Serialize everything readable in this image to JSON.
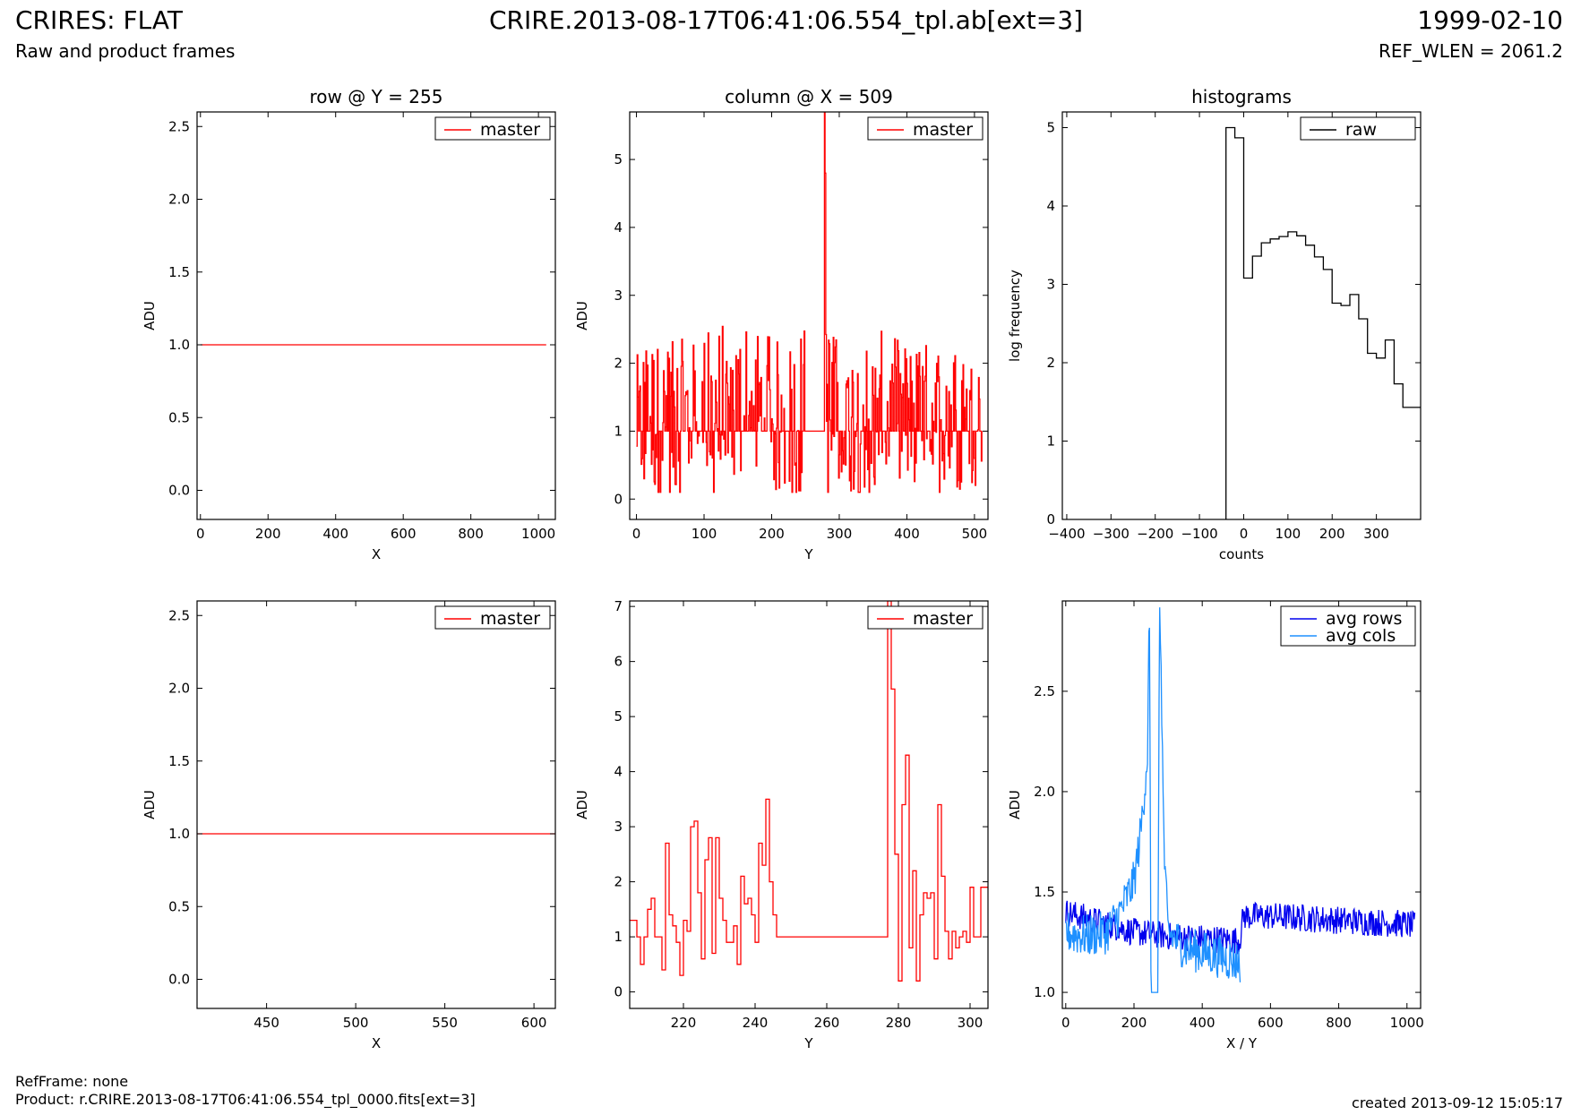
{
  "header": {
    "title": "CRIRES: FLAT",
    "subtitle": "Raw and product frames",
    "file": "CRIRE.2013-08-17T06:41:06.554_tpl.ab[ext=3]",
    "date": "1999-02-10",
    "ref_wlen": "REF_WLEN = 2061.2"
  },
  "footer": {
    "ref_frame": "RefFrame: none",
    "product": "Product: r.CRIRE.2013-08-17T06:41:06.554_tpl_0000.fits[ext=3]",
    "created": "created 2013-09-12 15:05:17"
  },
  "colors": {
    "master": "#ff0000",
    "raw": "#000000",
    "avg_rows": "#0000ee",
    "avg_cols": "#1e90ff"
  },
  "chart_data": [
    {
      "type": "line",
      "title": "row @ Y = 255",
      "xlabel": "X",
      "ylabel": "ADU",
      "xlim": [
        -10,
        1050
      ],
      "ylim": [
        -0.2,
        2.6
      ],
      "xticks": [
        0,
        200,
        400,
        600,
        800,
        1000
      ],
      "yticks": [
        0.0,
        0.5,
        1.0,
        1.5,
        2.0,
        2.5
      ],
      "ytick_labels": [
        "0.0",
        "0.5",
        "1.0",
        "1.5",
        "2.0",
        "2.5"
      ],
      "legend": "top-right",
      "series": [
        {
          "name": "master",
          "color": "#ff0000",
          "x": [
            0,
            1023
          ],
          "y": [
            1.0,
            1.0
          ]
        }
      ]
    },
    {
      "type": "line",
      "title": "column @ X = 509",
      "xlabel": "Y",
      "ylabel": "ADU",
      "xlim": [
        -10,
        520
      ],
      "ylim": [
        -0.3,
        5.7
      ],
      "xticks": [
        0,
        100,
        200,
        300,
        400,
        500
      ],
      "yticks": [
        0,
        1,
        2,
        3,
        4,
        5
      ],
      "ytick_labels": [
        "0",
        "1",
        "2",
        "3",
        "4",
        "5"
      ],
      "legend": "top-right",
      "series": [
        {
          "name": "master",
          "color": "#ff0000",
          "noisy": true,
          "x": [
            0,
            20,
            40,
            60,
            80,
            100,
            120,
            140,
            160,
            180,
            200,
            220,
            240,
            248,
            250,
            260,
            270,
            276,
            278,
            280,
            282,
            290,
            300,
            320,
            340,
            360,
            380,
            400,
            420,
            440,
            460,
            480,
            500,
            511
          ],
          "y": [
            1.2,
            1.6,
            1.3,
            1.5,
            1.4,
            1.6,
            1.7,
            1.8,
            1.9,
            1.7,
            1.5,
            1.4,
            1.6,
            1.7,
            1.0,
            1.0,
            1.0,
            1.0,
            5.7,
            3.9,
            1.9,
            1.6,
            1.5,
            1.4,
            1.5,
            1.6,
            1.5,
            1.4,
            1.4,
            1.5,
            1.4,
            1.3,
            1.2,
            1.1
          ]
        }
      ]
    },
    {
      "type": "line",
      "title": "histograms",
      "xlabel": "counts",
      "ylabel": "log frequency",
      "xlim": [
        -410,
        400
      ],
      "ylim": [
        0,
        5.2
      ],
      "xticks": [
        -400,
        -300,
        -200,
        -100,
        0,
        100,
        200,
        300
      ],
      "xtick_labels": [
        "−400",
        "−300",
        "−200",
        "−100",
        "0",
        "100",
        "200",
        "300"
      ],
      "yticks": [
        0,
        1,
        2,
        3,
        4,
        5
      ],
      "ytick_labels": [
        "0",
        "1",
        "2",
        "3",
        "4",
        "5"
      ],
      "legend": "top-right",
      "series": [
        {
          "name": "raw",
          "color": "#000000",
          "step": true,
          "x": [
            -40,
            -40,
            -20,
            0,
            20,
            40,
            60,
            80,
            100,
            120,
            140,
            160,
            180,
            200,
            220,
            240,
            260,
            280,
            300,
            320,
            340,
            360,
            380,
            400
          ],
          "y": [
            0,
            5.0,
            4.87,
            3.08,
            3.36,
            3.53,
            3.58,
            3.61,
            3.67,
            3.62,
            3.5,
            3.35,
            3.19,
            2.76,
            2.73,
            2.87,
            2.56,
            2.12,
            2.06,
            2.29,
            1.73,
            1.43,
            1.43,
            1.43
          ]
        }
      ]
    },
    {
      "type": "line",
      "title": "",
      "xlabel": "X",
      "ylabel": "ADU",
      "xlim": [
        411,
        612
      ],
      "ylim": [
        -0.2,
        2.6
      ],
      "xticks": [
        450,
        500,
        550,
        600
      ],
      "yticks": [
        0.0,
        0.5,
        1.0,
        1.5,
        2.0,
        2.5
      ],
      "ytick_labels": [
        "0.0",
        "0.5",
        "1.0",
        "1.5",
        "2.0",
        "2.5"
      ],
      "legend": "top-right",
      "series": [
        {
          "name": "master",
          "color": "#ff0000",
          "x": [
            411,
            612
          ],
          "y": [
            1.0,
            1.0
          ]
        }
      ]
    },
    {
      "type": "line",
      "title": "",
      "xlabel": "Y",
      "ylabel": "ADU",
      "xlim": [
        205,
        305
      ],
      "ylim": [
        -0.3,
        7.1
      ],
      "xticks": [
        220,
        240,
        260,
        280,
        300
      ],
      "yticks": [
        0,
        1,
        2,
        3,
        4,
        5,
        6,
        7
      ],
      "ytick_labels": [
        "0",
        "1",
        "2",
        "3",
        "4",
        "5",
        "6",
        "7"
      ],
      "legend": "top-right",
      "series": [
        {
          "name": "master",
          "color": "#ff0000",
          "step": true,
          "x": [
            205,
            206,
            207,
            208,
            209,
            210,
            211,
            212,
            213,
            214,
            215,
            216,
            217,
            218,
            219,
            220,
            221,
            222,
            223,
            224,
            225,
            226,
            227,
            228,
            229,
            230,
            231,
            232,
            233,
            234,
            235,
            236,
            237,
            238,
            239,
            240,
            241,
            242,
            243,
            244,
            245,
            246,
            247,
            248,
            277,
            278,
            279,
            280,
            281,
            282,
            283,
            284,
            285,
            286,
            287,
            288,
            289,
            290,
            291,
            292,
            293,
            294,
            295,
            296,
            297,
            298,
            299,
            300,
            301,
            302,
            303,
            304,
            305
          ],
          "y": [
            1.3,
            1.3,
            1.0,
            0.5,
            1.0,
            1.5,
            1.7,
            1.0,
            1.0,
            0.4,
            2.7,
            1.4,
            1.2,
            0.9,
            0.3,
            1.3,
            1.1,
            3.0,
            3.1,
            1.8,
            0.6,
            2.4,
            2.8,
            0.7,
            2.8,
            1.7,
            1.3,
            0.9,
            0.9,
            1.2,
            0.5,
            2.1,
            1.6,
            1.7,
            1.4,
            0.9,
            2.7,
            2.3,
            3.5,
            2.0,
            1.4,
            1.0,
            1.0,
            1.0,
            7.1,
            5.5,
            2.5,
            0.2,
            3.4,
            4.3,
            0.8,
            2.2,
            0.2,
            1.4,
            1.8,
            1.7,
            1.8,
            0.6,
            3.4,
            2.1,
            1.1,
            0.6,
            1.1,
            0.8,
            1.0,
            1.1,
            0.9,
            1.9,
            1.0,
            1.0,
            1.9,
            1.9,
            1.9
          ]
        }
      ]
    },
    {
      "type": "line",
      "title": "",
      "xlabel": "X / Y",
      "ylabel": "ADU",
      "xlim": [
        -10,
        1040
      ],
      "ylim": [
        0.92,
        2.95
      ],
      "xticks": [
        0,
        200,
        400,
        600,
        800,
        1000
      ],
      "yticks": [
        1.0,
        1.5,
        2.0,
        2.5
      ],
      "ytick_labels": [
        "1.0",
        "1.5",
        "2.0",
        "2.5"
      ],
      "legend": "top-right",
      "series": [
        {
          "name": "avg rows",
          "color": "#0000ee",
          "noisy": true,
          "x": [
            0,
            100,
            200,
            300,
            400,
            500,
            510,
            520,
            600,
            700,
            800,
            900,
            1000,
            1023
          ],
          "y": [
            1.4,
            1.35,
            1.3,
            1.28,
            1.27,
            1.26,
            1.26,
            1.38,
            1.38,
            1.37,
            1.36,
            1.35,
            1.34,
            1.33
          ]
        },
        {
          "name": "avg cols",
          "color": "#1e90ff",
          "noisy": true,
          "x": [
            0,
            60,
            120,
            160,
            200,
            220,
            240,
            245,
            250,
            270,
            275,
            280,
            285,
            290,
            300,
            350,
            400,
            450,
            511
          ],
          "y": [
            1.3,
            1.28,
            1.3,
            1.4,
            1.55,
            1.8,
            2.2,
            2.95,
            1.0,
            1.0,
            2.95,
            2.6,
            2.0,
            1.6,
            1.3,
            1.22,
            1.2,
            1.18,
            1.15
          ]
        }
      ]
    }
  ]
}
